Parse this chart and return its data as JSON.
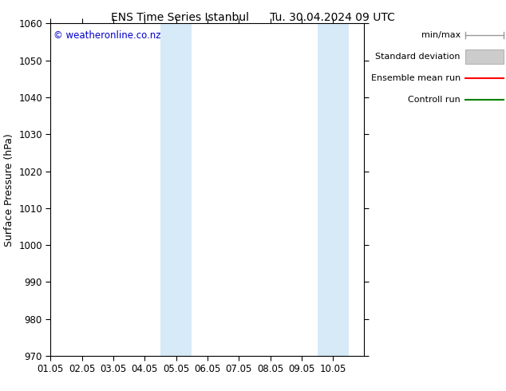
{
  "title_left": "ENS Time Series Istanbul",
  "title_right": "Tu. 30.04.2024 09 UTC",
  "ylabel": "Surface Pressure (hPa)",
  "ylim": [
    970,
    1060
  ],
  "yticks": [
    970,
    980,
    990,
    1000,
    1010,
    1020,
    1030,
    1040,
    1050,
    1060
  ],
  "xlim": [
    0.0,
    10.0
  ],
  "xtick_labels": [
    "01.05",
    "02.05",
    "03.05",
    "04.05",
    "05.05",
    "06.05",
    "07.05",
    "08.05",
    "09.05",
    "10.05"
  ],
  "xtick_positions": [
    0,
    1,
    2,
    3,
    4,
    5,
    6,
    7,
    8,
    9
  ],
  "shaded_regions": [
    {
      "x_start": 3.5,
      "x_end": 4.5,
      "color": "#d6eaf8"
    },
    {
      "x_start": 8.5,
      "x_end": 9.5,
      "color": "#d6eaf8"
    }
  ],
  "watermark_text": "© weatheronline.co.nz",
  "watermark_color": "#0000cc",
  "background_color": "#ffffff",
  "legend_entries": [
    "min/max",
    "Standard deviation",
    "Ensemble mean run",
    "Controll run"
  ],
  "legend_line_colors": [
    "#999999",
    "#cccccc",
    "#ff0000",
    "#008000"
  ],
  "title_fontsize": 10,
  "axis_label_fontsize": 9,
  "tick_fontsize": 8.5
}
